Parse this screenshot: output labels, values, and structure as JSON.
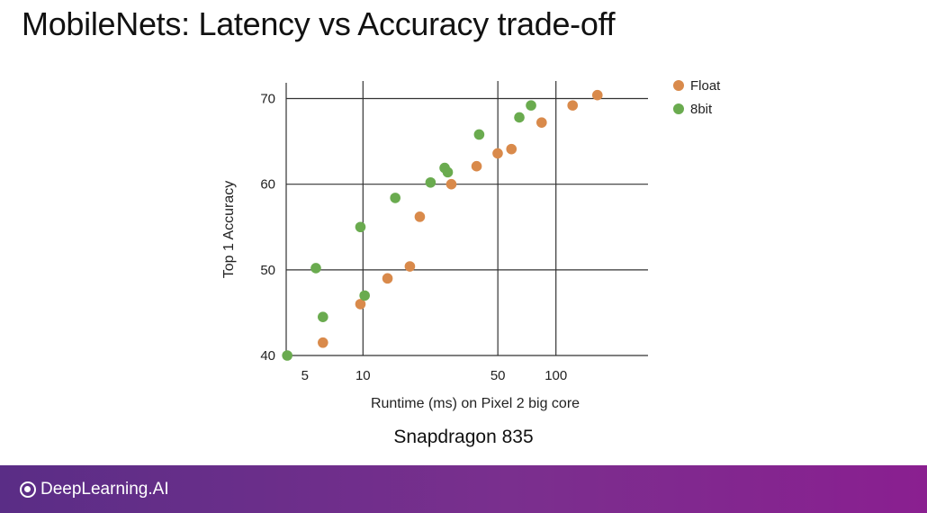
{
  "slide": {
    "title": "MobileNets: Latency vs Accuracy trade-off",
    "subcaption": "Snapdragon 835",
    "brand": "DeepLearning.AI"
  },
  "colors": {
    "float": "#d98a4b",
    "int8": "#6aab4f",
    "grid": "#333333"
  },
  "chart_data": {
    "type": "scatter",
    "title": "",
    "xlabel": "Runtime (ms) on Pixel 2 big core",
    "ylabel": "Top 1  Accuracy",
    "xscale": "log",
    "xlim": [
      4,
      300
    ],
    "ylim": [
      40,
      71
    ],
    "xticks": [
      5,
      10,
      50,
      100
    ],
    "xtick_labels": [
      "5",
      "10",
      "50",
      "100"
    ],
    "yticks": [
      40,
      50,
      60,
      70
    ],
    "ytick_labels": [
      "40",
      "50",
      "60",
      "70"
    ],
    "grid": true,
    "legend_position": "top-right",
    "series": [
      {
        "name": "Float",
        "color": "#d98a4b",
        "points": [
          {
            "x": 6.2,
            "y": 41.5
          },
          {
            "x": 9.7,
            "y": 46.0
          },
          {
            "x": 13.4,
            "y": 49.0
          },
          {
            "x": 17.5,
            "y": 50.4
          },
          {
            "x": 19.7,
            "y": 56.2
          },
          {
            "x": 28.7,
            "y": 60.0
          },
          {
            "x": 38.8,
            "y": 62.1
          },
          {
            "x": 49.9,
            "y": 63.6
          },
          {
            "x": 58.8,
            "y": 64.1
          },
          {
            "x": 84.3,
            "y": 67.2
          },
          {
            "x": 122,
            "y": 69.2
          },
          {
            "x": 164,
            "y": 70.4
          }
        ]
      },
      {
        "name": "8bit",
        "color": "#6aab4f",
        "points": [
          {
            "x": 4.05,
            "y": 40.0
          },
          {
            "x": 5.7,
            "y": 50.2
          },
          {
            "x": 6.2,
            "y": 44.5
          },
          {
            "x": 9.7,
            "y": 55.0
          },
          {
            "x": 10.2,
            "y": 47.0
          },
          {
            "x": 14.7,
            "y": 58.4
          },
          {
            "x": 22.4,
            "y": 60.2
          },
          {
            "x": 26.5,
            "y": 61.9
          },
          {
            "x": 27.5,
            "y": 61.4
          },
          {
            "x": 40.0,
            "y": 65.8
          },
          {
            "x": 64.6,
            "y": 67.8
          },
          {
            "x": 74.3,
            "y": 69.2
          }
        ]
      }
    ]
  }
}
